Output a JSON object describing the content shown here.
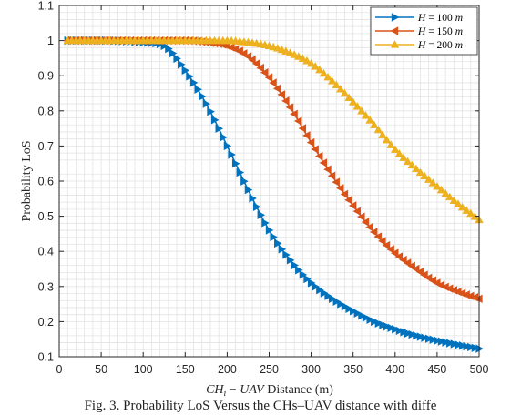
{
  "chart_data": {
    "type": "line",
    "title": "",
    "xlabel_parts": [
      "CH",
      "i",
      " − ",
      "UAV",
      " Distance (m)"
    ],
    "ylabel": "Probability LoS",
    "xlim": [
      0,
      500
    ],
    "ylim": [
      0.1,
      1.1
    ],
    "xticks": [
      0,
      50,
      100,
      150,
      200,
      250,
      300,
      350,
      400,
      450,
      500
    ],
    "yticks": [
      0.1,
      0.2,
      0.3,
      0.4,
      0.5,
      0.6,
      0.7,
      0.8,
      0.9,
      1,
      1.1
    ],
    "grid": true,
    "legend_position": "top-right",
    "x": [
      10,
      50,
      100,
      125,
      150,
      175,
      200,
      225,
      250,
      275,
      300,
      325,
      350,
      375,
      400,
      425,
      450,
      475,
      500
    ],
    "series": [
      {
        "legend": {
          "var": "H",
          "eq": " = 100 ",
          "unit": "m"
        },
        "color": "#0072BD",
        "marker": "triangle-right",
        "values": [
          1.0,
          1.0,
          0.995,
          0.985,
          0.915,
          0.82,
          0.7,
          0.575,
          0.46,
          0.375,
          0.31,
          0.265,
          0.23,
          0.2,
          0.178,
          0.16,
          0.146,
          0.134,
          0.123
        ]
      },
      {
        "legend": {
          "var": "H",
          "eq": " = 150 ",
          "unit": "m"
        },
        "color": "#D95319",
        "marker": "triangle-left",
        "values": [
          1.0,
          1.0,
          1.0,
          1.0,
          1.0,
          0.995,
          0.985,
          0.955,
          0.895,
          0.81,
          0.71,
          0.615,
          0.53,
          0.455,
          0.395,
          0.35,
          0.31,
          0.285,
          0.265
        ]
      },
      {
        "legend": {
          "var": "H",
          "eq": " = 200 ",
          "unit": "m"
        },
        "color": "#EDB120",
        "marker": "triangle-up",
        "values": [
          1.0,
          1.0,
          1.0,
          1.0,
          1.0,
          1.0,
          1.0,
          0.995,
          0.985,
          0.965,
          0.935,
          0.885,
          0.825,
          0.76,
          0.69,
          0.635,
          0.585,
          0.535,
          0.49
        ]
      }
    ]
  },
  "caption": "Fig. 3. Probability LoS Versus the CHs–UAV distance with diffe"
}
